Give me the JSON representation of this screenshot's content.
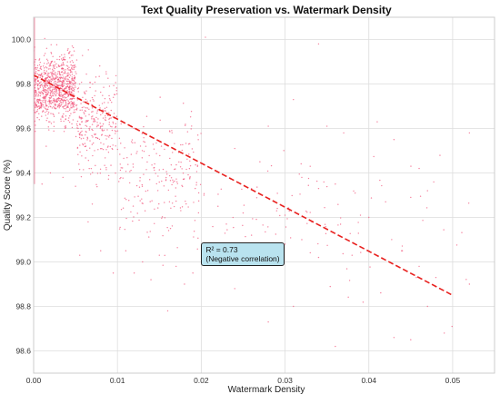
{
  "chart_data": {
    "type": "scatter",
    "title": "Text Quality Preservation vs. Watermark Density",
    "xlabel": "Watermark Density",
    "ylabel": "Quality Score (%)",
    "xlim": [
      0.0,
      0.055
    ],
    "ylim": [
      98.5,
      100.1
    ],
    "xticks": [
      "0.00",
      "0.01",
      "0.02",
      "0.03",
      "0.04",
      "0.05"
    ],
    "yticks": [
      "98.6",
      "98.8",
      "99.0",
      "99.2",
      "99.4",
      "99.6",
      "99.8",
      "100.0"
    ],
    "grid": true,
    "scatter_color": "#f2557c",
    "trend_color": "#e8201e",
    "trend_line": {
      "x": [
        0.0,
        0.05
      ],
      "y": [
        99.84,
        98.85
      ]
    },
    "annotation": {
      "lines": [
        "R² = 0.73",
        "(Negative correlation)"
      ],
      "x": 0.02,
      "y": 99.02
    },
    "density_clusters": [
      {
        "x_range": [
          0.0,
          0.005
        ],
        "y_mean": 99.78,
        "y_spread": 0.14,
        "count": 900
      },
      {
        "x_range": [
          0.005,
          0.01
        ],
        "y_mean": 99.62,
        "y_spread": 0.22,
        "count": 280
      },
      {
        "x_range": [
          0.01,
          0.02
        ],
        "y_mean": 99.4,
        "y_spread": 0.3,
        "count": 220
      },
      {
        "x_range": [
          0.02,
          0.035
        ],
        "y_mean": 99.25,
        "y_spread": 0.3,
        "count": 55
      },
      {
        "x_range": [
          0.035,
          0.052
        ],
        "y_mean": 99.1,
        "y_spread": 0.35,
        "count": 40
      }
    ],
    "points": [
      [
        0.0205,
        100.01
      ],
      [
        0.034,
        99.98
      ],
      [
        0.041,
        99.63
      ],
      [
        0.052,
        99.58
      ],
      [
        0.031,
        99.73
      ],
      [
        0.028,
        99.61
      ],
      [
        0.035,
        99.61
      ],
      [
        0.037,
        99.58
      ],
      [
        0.043,
        99.55
      ],
      [
        0.046,
        99.42
      ],
      [
        0.047,
        99.32
      ],
      [
        0.042,
        99.27
      ],
      [
        0.045,
        99.29
      ],
      [
        0.039,
        99.21
      ],
      [
        0.033,
        99.43
      ],
      [
        0.032,
        99.38
      ],
      [
        0.034,
        99.33
      ],
      [
        0.036,
        99.35
      ],
      [
        0.03,
        99.21
      ],
      [
        0.025,
        99.22
      ],
      [
        0.026,
        99.33
      ],
      [
        0.024,
        99.51
      ],
      [
        0.027,
        99.45
      ],
      [
        0.029,
        99.23
      ],
      [
        0.023,
        99.17
      ],
      [
        0.022,
        99.05
      ],
      [
        0.024,
        98.88
      ],
      [
        0.028,
        98.73
      ],
      [
        0.031,
        98.8
      ],
      [
        0.036,
        98.62
      ],
      [
        0.043,
        98.66
      ],
      [
        0.045,
        98.65
      ],
      [
        0.049,
        98.68
      ],
      [
        0.047,
        98.8
      ],
      [
        0.052,
        98.9
      ],
      [
        0.048,
        98.93
      ],
      [
        0.04,
        99.2
      ],
      [
        0.044,
        99.05
      ],
      [
        0.046,
        98.98
      ],
      [
        0.038,
        99.03
      ],
      [
        0.034,
        99.02
      ],
      [
        0.032,
        99.1
      ],
      [
        0.03,
        99.08
      ],
      [
        0.026,
        99.12
      ],
      [
        0.022,
        99.25
      ],
      [
        0.021,
        99.08
      ],
      [
        0.019,
        98.95
      ],
      [
        0.016,
        98.78
      ],
      [
        0.018,
        98.9
      ],
      [
        0.015,
        99.03
      ],
      [
        0.013,
        99.0
      ],
      [
        0.012,
        98.95
      ],
      [
        0.014,
        98.92
      ],
      [
        0.017,
        98.98
      ],
      [
        0.011,
        99.05
      ],
      [
        0.0095,
        98.95
      ],
      [
        0.008,
        99.05
      ],
      [
        0.0065,
        99.18
      ],
      [
        0.0055,
        99.03
      ],
      [
        0.007,
        99.26
      ],
      [
        0.005,
        99.34
      ],
      [
        0.0035,
        99.38
      ],
      [
        0.002,
        99.4
      ],
      [
        0.001,
        99.35
      ],
      [
        0.0015,
        99.52
      ]
    ]
  }
}
